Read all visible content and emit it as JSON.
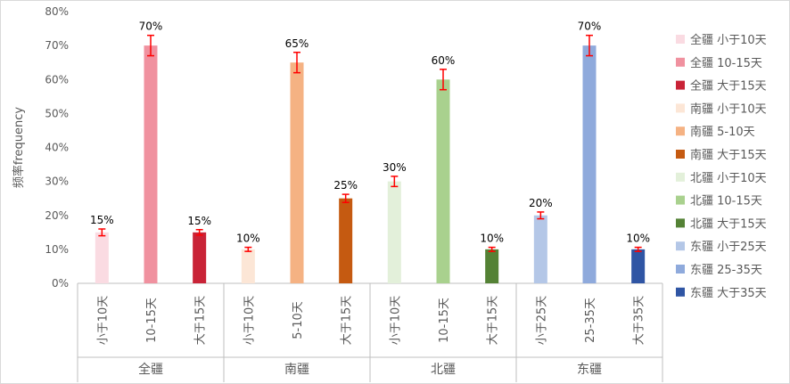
{
  "chart_data": {
    "type": "bar",
    "ylabel": "频率frequency",
    "ylim": [
      0,
      0.8
    ],
    "ytick_labels": [
      "0%",
      "10%",
      "20%",
      "30%",
      "40%",
      "50%",
      "60%",
      "70%",
      "80%"
    ],
    "groups": [
      {
        "name": "全疆",
        "bars": [
          {
            "category": "小于10天",
            "legend": "全疆 小于10天",
            "value": 0.15,
            "label": "15%",
            "error": 0.01,
            "color": "#fadbe2"
          },
          {
            "category": "10-15天",
            "legend": "全疆 10-15天",
            "value": 0.7,
            "label": "70%",
            "error": 0.03,
            "color": "#f0919f"
          },
          {
            "category": "大于15天",
            "legend": "全疆 大于15天",
            "value": 0.15,
            "label": "15%",
            "error": 0.008,
            "color": "#c92337"
          }
        ]
      },
      {
        "name": "南疆",
        "bars": [
          {
            "category": "小于10天",
            "legend": "南疆 小于10天",
            "value": 0.1,
            "label": "10%",
            "error": 0.006,
            "color": "#fce6d6"
          },
          {
            "category": "5-10天",
            "legend": "南疆 5-10天",
            "value": 0.65,
            "label": "65%",
            "error": 0.03,
            "color": "#f5b283"
          },
          {
            "category": "大于15天",
            "legend": "南疆 大于15天",
            "value": 0.25,
            "label": "25%",
            "error": 0.012,
            "color": "#c55a11"
          }
        ]
      },
      {
        "name": "北疆",
        "bars": [
          {
            "category": "小于10天",
            "legend": "北疆 小于10天",
            "value": 0.3,
            "label": "30%",
            "error": 0.015,
            "color": "#e3f0da"
          },
          {
            "category": "10-15天",
            "legend": "北疆 10-15天",
            "value": 0.6,
            "label": "60%",
            "error": 0.03,
            "color": "#a9d18e"
          },
          {
            "category": "大于15天",
            "legend": "北疆 大于15天",
            "value": 0.1,
            "label": "10%",
            "error": 0.006,
            "color": "#548235"
          }
        ]
      },
      {
        "name": "东疆",
        "bars": [
          {
            "category": "小于25天",
            "legend": "东疆 小于25天",
            "value": 0.2,
            "label": "20%",
            "error": 0.01,
            "color": "#b4c7e7"
          },
          {
            "category": "25-35天",
            "legend": "东疆 25-35天",
            "value": 0.7,
            "label": "70%",
            "error": 0.03,
            "color": "#8faadc"
          },
          {
            "category": "大于35天",
            "legend": "东疆 大于35天",
            "value": 0.1,
            "label": "10%",
            "error": 0.006,
            "color": "#2f55a4"
          }
        ]
      }
    ],
    "error_bar_color": "#ff0000",
    "grid": false,
    "legend_position": "right"
  }
}
